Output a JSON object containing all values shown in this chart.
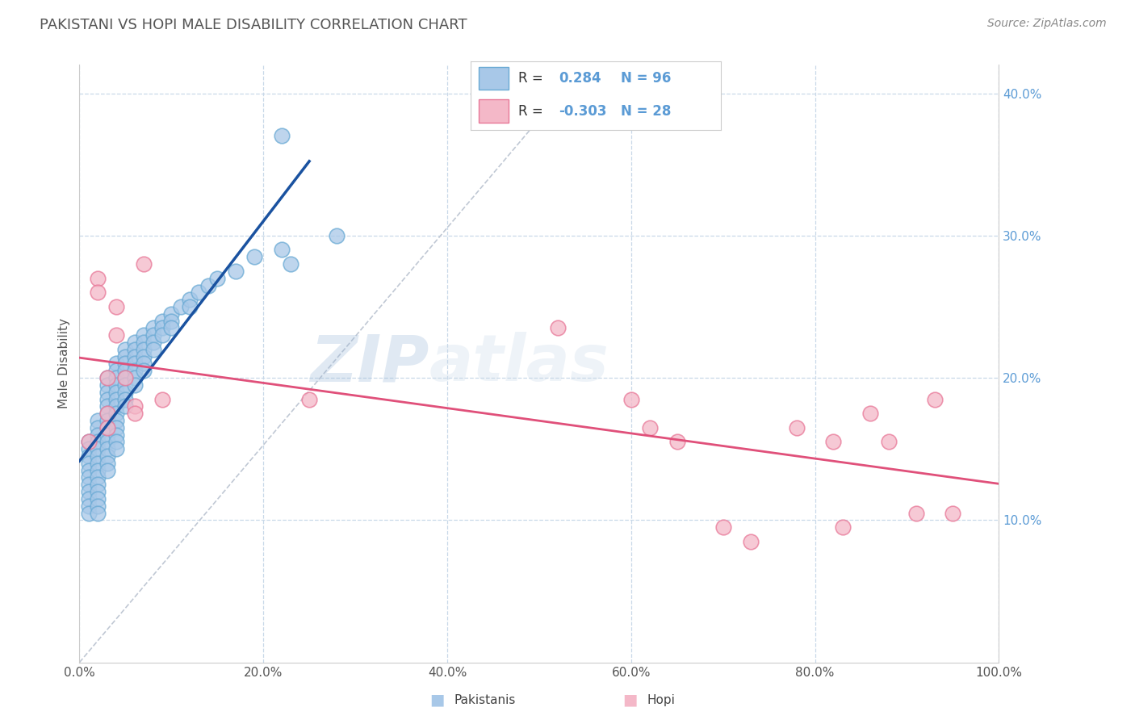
{
  "title": "PAKISTANI VS HOPI MALE DISABILITY CORRELATION CHART",
  "source_text": "Source: ZipAtlas.com",
  "ylabel": "Male Disability",
  "xlim": [
    0,
    1.0
  ],
  "ylim": [
    0,
    0.42
  ],
  "xtick_vals": [
    0.0,
    0.2,
    0.4,
    0.6,
    0.8,
    1.0
  ],
  "ytick_vals": [
    0.1,
    0.2,
    0.3,
    0.4
  ],
  "watermark_zip": "ZIP",
  "watermark_atlas": "atlas",
  "pakistani_color": "#a8c8e8",
  "pakistani_edge": "#6aaad4",
  "hopi_color": "#f4b8c8",
  "hopi_edge": "#e87898",
  "pakistani_line_color": "#1a52a0",
  "hopi_line_color": "#e0507a",
  "diagonal_color": "#c0c8d4",
  "background_color": "#ffffff",
  "grid_color": "#c8d8e8",
  "grid_style": "--",
  "title_color": "#555555",
  "source_color": "#888888",
  "ytick_color": "#5b9bd5",
  "xtick_color": "#555555",
  "legend_text_color": "#333333",
  "legend_val_color": "#5b9bd5",
  "pakistani_scatter_x": [
    0.01,
    0.01,
    0.01,
    0.01,
    0.01,
    0.01,
    0.01,
    0.01,
    0.01,
    0.01,
    0.01,
    0.02,
    0.02,
    0.02,
    0.02,
    0.02,
    0.02,
    0.02,
    0.02,
    0.02,
    0.02,
    0.02,
    0.02,
    0.02,
    0.02,
    0.03,
    0.03,
    0.03,
    0.03,
    0.03,
    0.03,
    0.03,
    0.03,
    0.03,
    0.03,
    0.03,
    0.03,
    0.03,
    0.03,
    0.04,
    0.04,
    0.04,
    0.04,
    0.04,
    0.04,
    0.04,
    0.04,
    0.04,
    0.04,
    0.04,
    0.04,
    0.04,
    0.05,
    0.05,
    0.05,
    0.05,
    0.05,
    0.05,
    0.05,
    0.05,
    0.05,
    0.06,
    0.06,
    0.06,
    0.06,
    0.06,
    0.06,
    0.06,
    0.07,
    0.07,
    0.07,
    0.07,
    0.07,
    0.07,
    0.08,
    0.08,
    0.08,
    0.08,
    0.09,
    0.09,
    0.09,
    0.1,
    0.1,
    0.1,
    0.11,
    0.12,
    0.12,
    0.13,
    0.14,
    0.15,
    0.17,
    0.19,
    0.22,
    0.22,
    0.23,
    0.28
  ],
  "pakistani_scatter_y": [
    0.155,
    0.15,
    0.145,
    0.14,
    0.135,
    0.13,
    0.125,
    0.12,
    0.115,
    0.11,
    0.105,
    0.17,
    0.165,
    0.16,
    0.155,
    0.15,
    0.145,
    0.14,
    0.135,
    0.13,
    0.125,
    0.12,
    0.115,
    0.11,
    0.105,
    0.2,
    0.195,
    0.19,
    0.185,
    0.18,
    0.175,
    0.17,
    0.165,
    0.16,
    0.155,
    0.15,
    0.145,
    0.14,
    0.135,
    0.21,
    0.205,
    0.2,
    0.195,
    0.19,
    0.185,
    0.18,
    0.175,
    0.17,
    0.165,
    0.16,
    0.155,
    0.15,
    0.22,
    0.215,
    0.21,
    0.205,
    0.2,
    0.195,
    0.19,
    0.185,
    0.18,
    0.225,
    0.22,
    0.215,
    0.21,
    0.205,
    0.2,
    0.195,
    0.23,
    0.225,
    0.22,
    0.215,
    0.21,
    0.205,
    0.235,
    0.23,
    0.225,
    0.22,
    0.24,
    0.235,
    0.23,
    0.245,
    0.24,
    0.235,
    0.25,
    0.255,
    0.25,
    0.26,
    0.265,
    0.27,
    0.275,
    0.285,
    0.29,
    0.37,
    0.28,
    0.3
  ],
  "hopi_scatter_x": [
    0.01,
    0.02,
    0.02,
    0.03,
    0.03,
    0.03,
    0.04,
    0.04,
    0.05,
    0.06,
    0.06,
    0.07,
    0.09,
    0.25,
    0.52,
    0.6,
    0.62,
    0.65,
    0.7,
    0.73,
    0.78,
    0.82,
    0.83,
    0.86,
    0.88,
    0.91,
    0.93,
    0.95
  ],
  "hopi_scatter_y": [
    0.155,
    0.27,
    0.26,
    0.2,
    0.175,
    0.165,
    0.25,
    0.23,
    0.2,
    0.18,
    0.175,
    0.28,
    0.185,
    0.185,
    0.235,
    0.185,
    0.165,
    0.155,
    0.095,
    0.085,
    0.165,
    0.155,
    0.095,
    0.175,
    0.155,
    0.105,
    0.185,
    0.105
  ]
}
